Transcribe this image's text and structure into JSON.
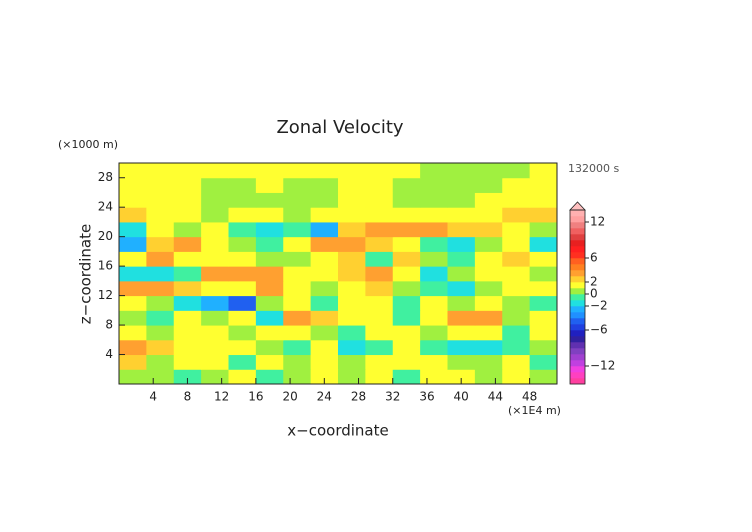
{
  "chart_data": {
    "type": "contour",
    "title": "Zonal Velocity",
    "x_label": "x−coordinate",
    "y_label": "z−coordinate",
    "x_unit_label": "(×1E4 m)",
    "y_unit_label": "(×1000 m)",
    "time_label": "132000 s",
    "xlim": [
      0,
      51.2
    ],
    "ylim": [
      0,
      30
    ],
    "xticks": [
      4,
      8,
      12,
      16,
      20,
      24,
      28,
      32,
      36,
      40,
      44,
      48
    ],
    "yticks": [
      4,
      8,
      12,
      16,
      20,
      24,
      28
    ],
    "x": [
      1.6,
      4.8,
      8,
      11.2,
      14.4,
      17.6,
      20.8,
      24,
      27.2,
      30.4,
      33.6,
      36.8,
      40,
      43.2,
      46.4,
      49.6
    ],
    "y": [
      1,
      3,
      5,
      7,
      9,
      11,
      13,
      15,
      17,
      19,
      21,
      23,
      25,
      27,
      29
    ],
    "z": [
      [
        0,
        0,
        -1,
        0,
        1,
        -1,
        0,
        1,
        0,
        1,
        -1,
        1,
        1,
        0,
        1,
        0
      ],
      [
        2,
        0,
        1,
        1,
        -1,
        1,
        0,
        1,
        0,
        1,
        1,
        1,
        0,
        0,
        1,
        -1
      ],
      [
        3,
        2,
        1,
        1,
        1,
        0,
        -1,
        1,
        -2,
        -1,
        1,
        -1,
        -2,
        -2,
        -1,
        0
      ],
      [
        1,
        0,
        1,
        1,
        0,
        1,
        1,
        0,
        -1,
        1,
        1,
        0,
        1,
        1,
        -1,
        1
      ],
      [
        0,
        -1,
        1,
        0,
        1,
        -2,
        3,
        2,
        1,
        1,
        -1,
        1,
        3,
        3,
        0,
        1
      ],
      [
        1,
        0,
        -2,
        -3,
        -5,
        0,
        1,
        -1,
        1,
        1,
        -1,
        1,
        0,
        1,
        0,
        -1
      ],
      [
        3,
        3,
        2,
        1,
        1,
        3,
        1,
        0,
        1,
        2,
        0,
        -1,
        -2,
        0,
        1,
        1
      ],
      [
        -2,
        -2,
        -1,
        3,
        3,
        3,
        1,
        1,
        2,
        3,
        1,
        -2,
        0,
        1,
        1,
        0
      ],
      [
        1,
        3,
        1,
        1,
        1,
        0,
        0,
        1,
        2,
        -1,
        2,
        0,
        -1,
        1,
        2,
        1
      ],
      [
        -3,
        2,
        3,
        1,
        0,
        -1,
        1,
        3,
        3,
        2,
        1,
        -1,
        -2,
        0,
        1,
        -2
      ],
      [
        -2,
        1,
        0,
        1,
        -1,
        -2,
        -1,
        -3,
        2,
        3,
        3,
        3,
        2,
        2,
        1,
        0
      ],
      [
        2,
        1,
        1,
        0,
        1,
        1,
        0,
        1,
        1,
        1,
        1,
        1,
        1,
        1,
        2,
        2
      ],
      [
        1,
        1,
        1,
        0,
        0,
        0,
        0,
        0,
        1,
        1,
        0,
        0,
        0,
        1,
        1,
        1
      ],
      [
        1,
        1,
        1,
        0,
        0,
        1,
        0,
        0,
        1,
        1,
        0,
        0,
        0,
        0,
        1,
        1
      ],
      [
        1,
        1,
        1,
        1,
        1,
        1,
        1,
        1,
        1,
        1,
        1,
        0,
        0,
        0,
        0,
        1
      ]
    ],
    "colorbar": {
      "levels": [
        -15,
        -14,
        -13,
        -12,
        -11,
        -10,
        -9,
        -8,
        -7,
        -6,
        -5,
        -4,
        -3,
        -2,
        -1,
        0,
        1,
        2,
        3,
        4,
        5,
        6,
        7,
        8,
        9,
        10,
        11,
        12,
        13,
        14
      ],
      "colors": [
        "#ff3fa0",
        "#ff40c0",
        "#f040e0",
        "#c040e0",
        "#a040d0",
        "#8040c0",
        "#6030b0",
        "#3020a0",
        "#2020c0",
        "#2040e0",
        "#2060f0",
        "#2090ff",
        "#20b0ff",
        "#20e0e0",
        "#40f0a0",
        "#a0f040",
        "#ffff30",
        "#ffd030",
        "#ffa030",
        "#ff8020",
        "#ff6020",
        "#ff3020",
        "#ff2020",
        "#e82020",
        "#e04040",
        "#f06060",
        "#f08080",
        "#ffa0a0",
        "#ffb0b0"
      ],
      "extend_color": "#ffc0c0",
      "ticks": [
        12,
        6,
        2,
        0,
        {
          "value": -2,
          "label": "−2"
        },
        {
          "value": -6,
          "label": "−6"
        },
        {
          "value": -12,
          "label": "−12"
        }
      ]
    }
  }
}
